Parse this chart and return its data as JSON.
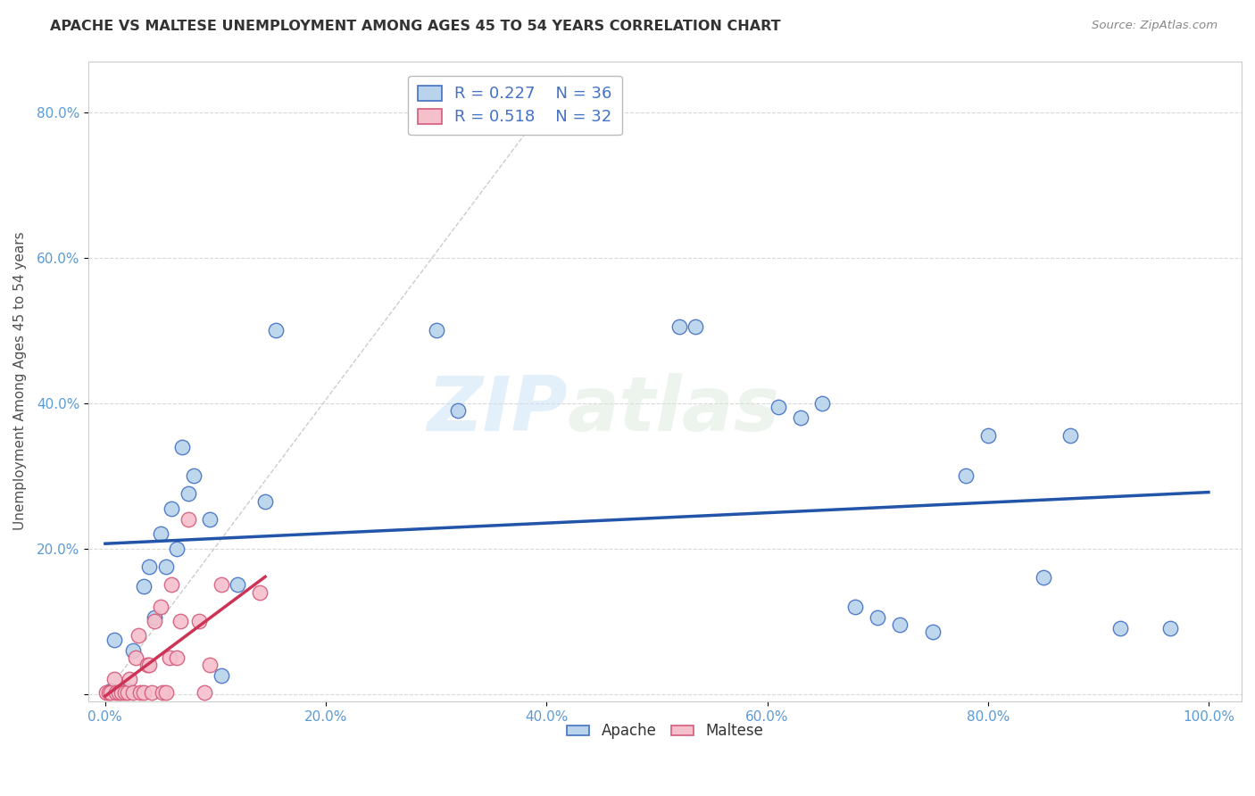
{
  "title": "APACHE VS MALTESE UNEMPLOYMENT AMONG AGES 45 TO 54 YEARS CORRELATION CHART",
  "source": "Source: ZipAtlas.com",
  "ylabel": "Unemployment Among Ages 45 to 54 years",
  "xlim": [
    -1.5,
    103
  ],
  "ylim": [
    -1.0,
    87
  ],
  "xticks": [
    0,
    20,
    40,
    60,
    80,
    100
  ],
  "xticklabels": [
    "0.0%",
    "20.0%",
    "40.0%",
    "60.0%",
    "80.0%",
    "100.0%"
  ],
  "yticks": [
    0,
    20,
    40,
    60,
    80
  ],
  "yticklabels": [
    "",
    "20.0%",
    "40.0%",
    "60.0%",
    "80.0%"
  ],
  "apache_fill": "#b8d3eb",
  "apache_edge": "#4472c4",
  "maltese_fill": "#f5bfcc",
  "maltese_edge": "#d45b7a",
  "trend_apache": "#2255aa",
  "trend_maltese": "#cc3355",
  "diagonal_color": "#cccccc",
  "watermark_zip": "ZIP",
  "watermark_atlas": "atlas",
  "apache_R": "R = 0.227",
  "apache_N": "N = 36",
  "maltese_R": "R = 0.518",
  "maltese_N": "N = 32",
  "apache_x": [
    0.5,
    0.8,
    2.0,
    2.5,
    3.5,
    4.0,
    4.5,
    5.0,
    5.5,
    6.0,
    6.5,
    7.0,
    7.5,
    8.0,
    9.5,
    10.5,
    12.0,
    14.5,
    15.5,
    30.0,
    32.0,
    52.0,
    53.5,
    61.0,
    63.0,
    65.0,
    68.0,
    70.0,
    72.0,
    75.0,
    78.0,
    80.0,
    85.0,
    87.5,
    92.0,
    96.5
  ],
  "apache_y": [
    0.5,
    7.5,
    0.5,
    6.0,
    14.8,
    17.5,
    10.5,
    22.0,
    17.5,
    25.5,
    20.0,
    34.0,
    27.5,
    30.0,
    24.0,
    2.5,
    15.0,
    26.5,
    50.0,
    50.0,
    39.0,
    50.5,
    50.5,
    39.5,
    38.0,
    40.0,
    12.0,
    10.5,
    9.5,
    8.5,
    30.0,
    35.5,
    16.0,
    35.5,
    9.0,
    9.0
  ],
  "maltese_x": [
    0.1,
    0.3,
    0.5,
    0.8,
    1.0,
    1.2,
    1.5,
    1.8,
    2.0,
    2.2,
    2.5,
    2.8,
    3.0,
    3.2,
    3.5,
    3.8,
    4.0,
    4.2,
    4.5,
    5.0,
    5.2,
    5.5,
    5.8,
    6.0,
    6.5,
    6.8,
    7.5,
    8.5,
    9.0,
    9.5,
    10.5,
    14.0
  ],
  "maltese_y": [
    0.2,
    0.2,
    0.2,
    2.0,
    0.2,
    0.2,
    0.2,
    0.2,
    0.2,
    2.0,
    0.2,
    5.0,
    8.0,
    0.2,
    0.2,
    4.0,
    4.0,
    0.2,
    10.0,
    12.0,
    0.2,
    0.2,
    5.0,
    15.0,
    5.0,
    10.0,
    24.0,
    10.0,
    0.2,
    4.0,
    15.0,
    14.0
  ]
}
